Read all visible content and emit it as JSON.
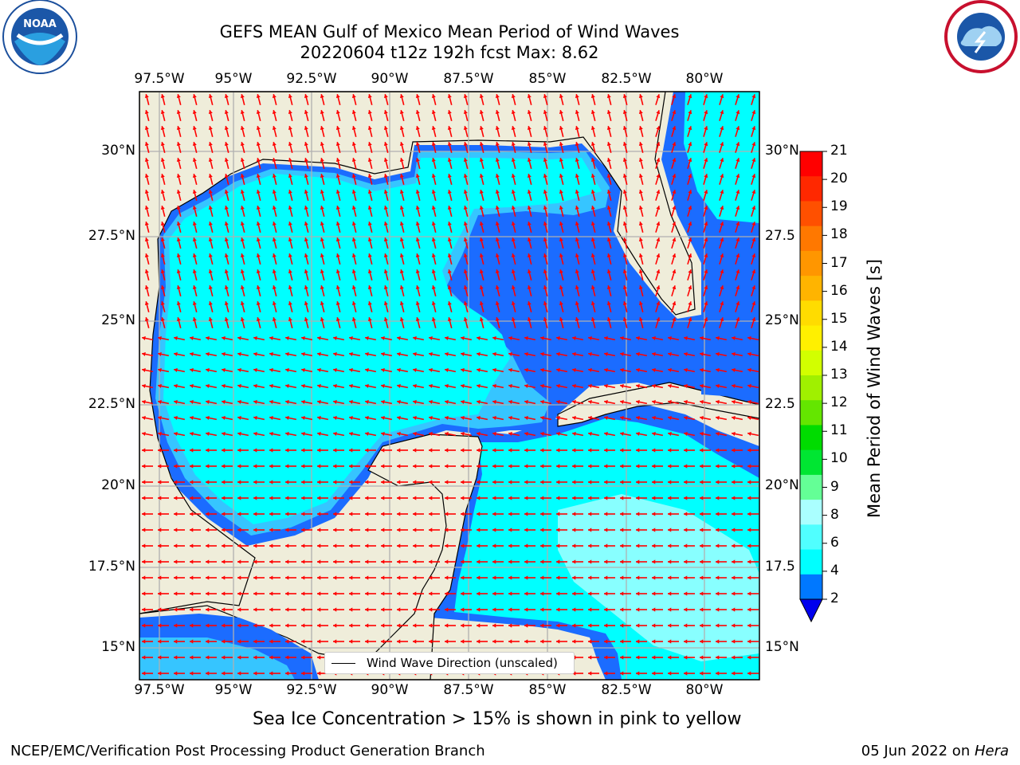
{
  "header": {
    "title_line1": "GEFS MEAN Gulf of Mexico Mean Period of Wind Waves",
    "title_line2": "20220604 t12z 192h fcst   Max: 8.62"
  },
  "map": {
    "lon_ticks": [
      "97.5°W",
      "95°W",
      "92.5°W",
      "90°W",
      "87.5°W",
      "85°W",
      "82.5°W",
      "80°W"
    ],
    "lat_ticks_left": [
      "30°N",
      "27.5°N",
      "25°N",
      "22.5°N",
      "20°N",
      "17.5°N",
      "15°N"
    ],
    "lat_ticks_right": [
      "30°N",
      "27.5",
      "25°N",
      "22.5",
      "20°N",
      "17.5",
      "15°N"
    ],
    "legend_label": "Wind Wave Direction (unscaled)",
    "colors": {
      "land": "#efedda",
      "ocean_light": "#00ffff",
      "ocean_mid": "#36c5ff",
      "ocean_dark": "#1b6cff",
      "ocean_deep": "#0000ee",
      "arrow": "#ff0000",
      "grid": "#b0b0b0"
    }
  },
  "colorbar": {
    "label": "Mean Period of Wind Waves [s]",
    "ticks": [
      "21",
      "20",
      "19",
      "18",
      "17",
      "16",
      "15",
      "14",
      "13",
      "12",
      "11",
      "10",
      "9",
      "8",
      "6",
      "4",
      "2"
    ],
    "colors": [
      "#ff0000",
      "#ff2800",
      "#ff5000",
      "#ff7800",
      "#ff9600",
      "#ffb400",
      "#ffdc00",
      "#fff000",
      "#f0ff00",
      "#d2ff00",
      "#b4ff00",
      "#64e600",
      "#00d200",
      "#00e632",
      "#64ff96",
      "#aaffff",
      "#50ffff",
      "#00ffff",
      "#0078ff"
    ]
  },
  "footer": {
    "ice_note": "Sea Ice Concentration > 15% is shown in pink to yellow",
    "left": "NCEP/EMC/Verification Post Processing Product Generation Branch",
    "right_date": "05 Jun 2022 on ",
    "right_host": "Hera"
  }
}
